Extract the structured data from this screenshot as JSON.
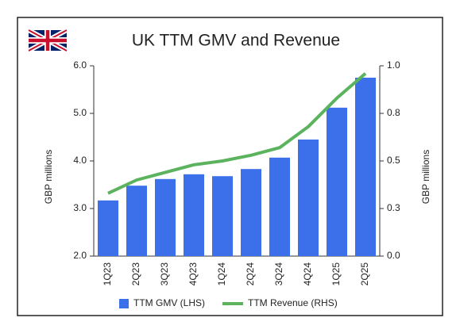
{
  "chart_data": {
    "type": "bar-line",
    "title": "UK TTM GMV and Revenue",
    "categories": [
      "1Q23",
      "2Q23",
      "3Q23",
      "4Q23",
      "1Q24",
      "2Q24",
      "3Q24",
      "4Q24",
      "1Q25",
      "2Q25"
    ],
    "series": [
      {
        "name": "TTM GMV (LHS)",
        "type": "bar",
        "color": "#3c70ea",
        "values": [
          3.17,
          3.48,
          3.62,
          3.72,
          3.68,
          3.83,
          4.07,
          4.45,
          5.12,
          5.75
        ]
      },
      {
        "name": "TTM Revenue (RHS)",
        "type": "line",
        "axis": "y2",
        "color": "#5bb35d",
        "values": [
          0.33,
          0.4,
          0.44,
          0.48,
          0.5,
          0.53,
          0.57,
          0.68,
          0.83,
          0.96
        ]
      }
    ],
    "ylabel": "GBP millions",
    "y2label": "GBP millions",
    "ylim": [
      2,
      6
    ],
    "yticks": [
      {
        "value": 2,
        "label": "2.0"
      },
      {
        "value": 3,
        "label": "3.0"
      },
      {
        "value": 4,
        "label": "4.0"
      },
      {
        "value": 5,
        "label": "5.0"
      },
      {
        "value": 6,
        "label": "6.0"
      }
    ],
    "y2lim": [
      0,
      1
    ],
    "y2ticks": [
      {
        "value": 0,
        "label": "0.0"
      },
      {
        "value": 0.25,
        "label": "0.3"
      },
      {
        "value": 0.5,
        "label": "0.5"
      },
      {
        "value": 0.75,
        "label": "0.8"
      },
      {
        "value": 1,
        "label": "1.0"
      }
    ],
    "grid": false,
    "legend": "bottom"
  }
}
